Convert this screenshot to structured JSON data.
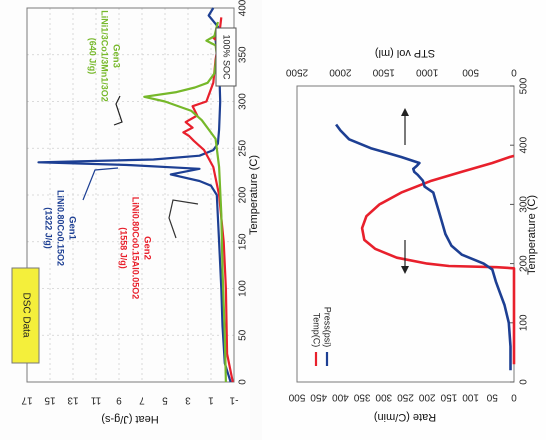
{
  "chart_data": [
    {
      "type": "line",
      "title": "",
      "xlabel": "Temperature (C)",
      "ylabel": "Heat (J/g-s)",
      "xlim": [
        0,
        400
      ],
      "ylim": [
        -1,
        17
      ],
      "xticks": [
        "0",
        "50",
        "100",
        "150",
        "200",
        "250",
        "300",
        "350",
        "400"
      ],
      "yticks": [
        "-1",
        "1",
        "3",
        "5",
        "7",
        "9",
        "11",
        "13",
        "15",
        "17"
      ],
      "grid": true,
      "tag_dsc": "DSC Data",
      "tag_soc": "100% SOC",
      "series": [
        {
          "name": "Gen1",
          "color": "#1d3f93",
          "x": [
            0,
            20,
            60,
            100,
            150,
            200,
            210,
            215,
            222,
            228,
            232,
            235,
            238,
            242,
            248,
            255,
            270,
            300,
            340,
            365,
            370,
            380,
            392,
            400
          ],
          "y": [
            -0.7,
            -0.2,
            0,
            0.1,
            0.3,
            0.5,
            1,
            2,
            4.5,
            2,
            8,
            16,
            6,
            2,
            0.8,
            0.4,
            0.3,
            0.2,
            0.3,
            0.6,
            0.5,
            0.4,
            1.2,
            0.8
          ]
        },
        {
          "name": "Gen2",
          "color": "#e8202c",
          "x": [
            0,
            30,
            100,
            150,
            200,
            230,
            248,
            258,
            263,
            267,
            272,
            278,
            285,
            295,
            300,
            320,
            345,
            360,
            365,
            368,
            372,
            380,
            390
          ],
          "y": [
            -0.9,
            -0.4,
            -0.3,
            -0.1,
            0.3,
            0.8,
            1.6,
            2.5,
            2.9,
            3.4,
            2.6,
            3.2,
            2.2,
            2.6,
            1.4,
            0.8,
            0.6,
            0.4,
            0.5,
            0.8,
            0.3,
            0.2,
            0.1
          ]
        },
        {
          "name": "Gen3",
          "color": "#76b82a",
          "x": [
            0,
            50,
            120,
            180,
            230,
            260,
            270,
            280,
            290,
            300,
            305,
            310,
            315,
            320,
            330,
            350,
            360,
            365,
            370,
            385
          ],
          "y": [
            -0.3,
            -0.2,
            0,
            0.1,
            0.3,
            0.6,
            1.2,
            1.8,
            2.7,
            5,
            6.8,
            4,
            2.4,
            1.3,
            0.7,
            0.5,
            0.6,
            1.4,
            0.7,
            0.4
          ]
        }
      ],
      "annotations": {
        "gen1": [
          "Gen1",
          "LiNi0.80Co0.15O2",
          "(1322 J/g)"
        ],
        "gen2": [
          "Gen2",
          "LiNi0.80Co0.15Al0.05O2",
          "(1558 J/g)"
        ],
        "gen3": [
          "Gen3",
          "LiNi1/3Co1/3Mn1/3O2",
          "(640 J/g)"
        ]
      }
    },
    {
      "type": "line",
      "title": "",
      "xlabel": "Temperature (C)",
      "ylabel": "Rate (C/min)",
      "y2label": "STP vol (ml)",
      "xlim": [
        0,
        500
      ],
      "ylim": [
        0,
        500
      ],
      "y2lim": [
        0,
        2500
      ],
      "xticks": [
        "0",
        "100",
        "200",
        "300",
        "400",
        "500"
      ],
      "yticks": [
        "0",
        "50",
        "100",
        "150",
        "200",
        "250",
        "300",
        "350",
        "400",
        "450",
        "500"
      ],
      "y2ticks": [
        "0",
        "500",
        "1000",
        "1500",
        "2000",
        "2500"
      ],
      "grid": false,
      "legend": [
        "Temp(C)",
        "Press(psi)"
      ],
      "series": [
        {
          "name": "Temp(C)",
          "axis": "left",
          "color": "#e8202c",
          "x": [
            30,
            100,
            150,
            180,
            192,
            194,
            196,
            200,
            210,
            225,
            240,
            260,
            280,
            300,
            320,
            340,
            355,
            370,
            380,
            382
          ],
          "y": [
            0,
            0,
            0,
            0,
            0,
            40,
            150,
            200,
            270,
            320,
            345,
            350,
            340,
            310,
            260,
            190,
            120,
            50,
            10,
            0
          ]
        },
        {
          "name": "Press(psi)",
          "axis": "right",
          "color": "#1d3f93",
          "x": [
            20,
            60,
            100,
            130,
            150,
            170,
            190,
            200,
            215,
            230,
            250,
            270,
            290,
            310,
            320,
            330,
            340,
            350,
            355,
            360,
            365,
            370,
            380,
            395,
            410,
            425,
            435
          ],
          "y": [
            40,
            40,
            60,
            110,
            160,
            210,
            250,
            350,
            600,
            720,
            790,
            830,
            870,
            910,
            930,
            1030,
            1050,
            1110,
            1150,
            1160,
            1120,
            1090,
            1300,
            1650,
            1900,
            2000,
            2050
          ]
        }
      ]
    }
  ]
}
